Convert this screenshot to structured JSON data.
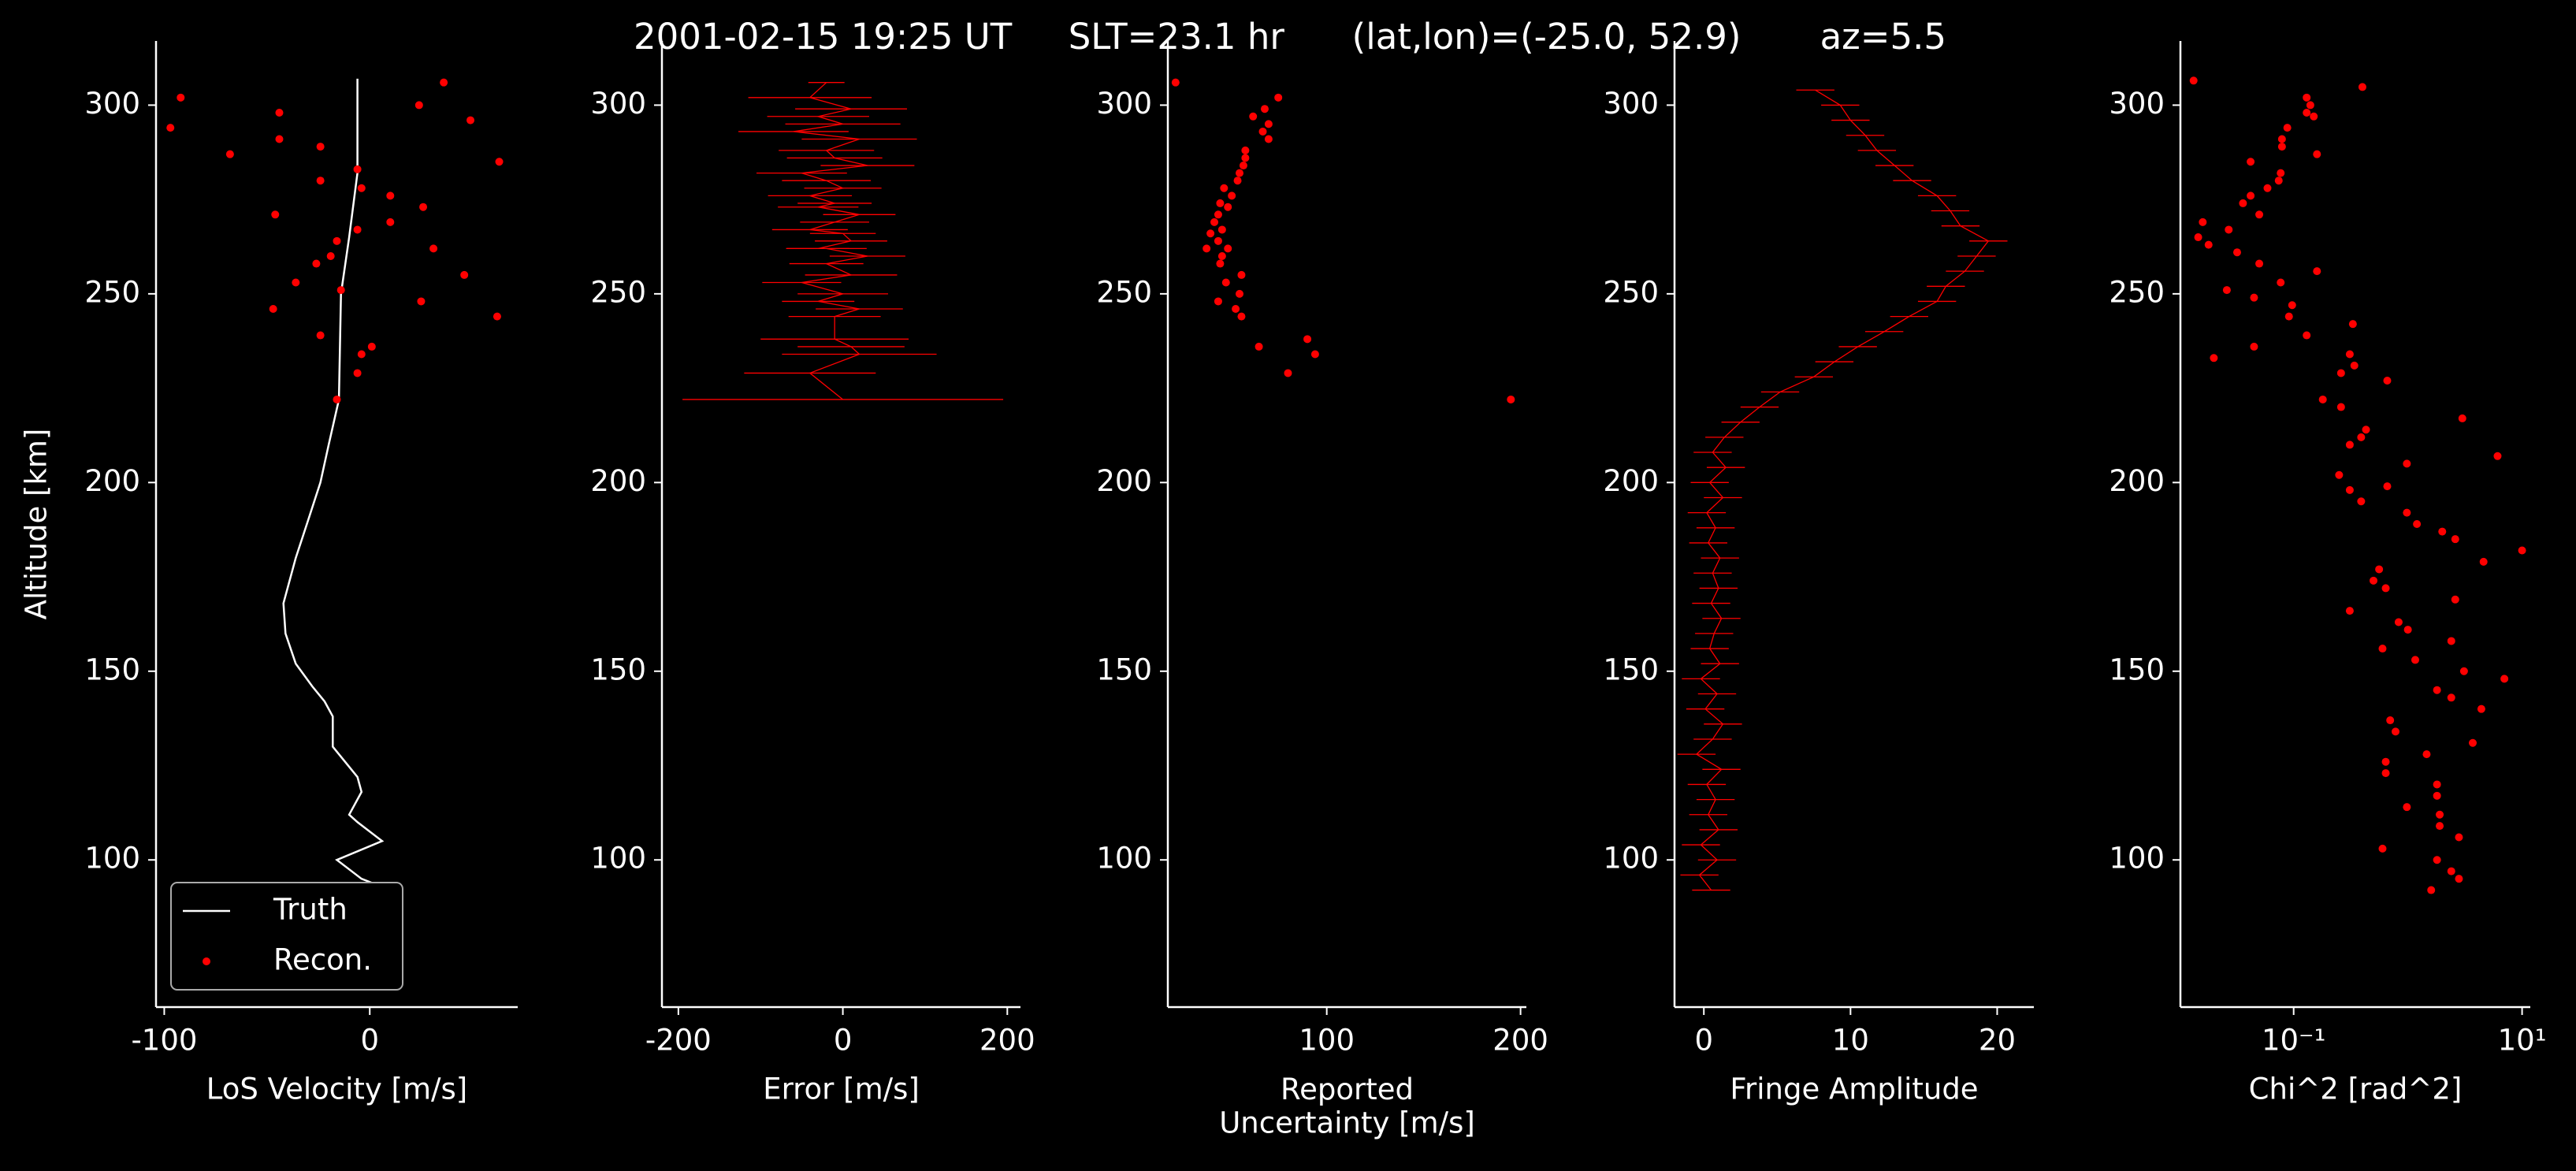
{
  "title": "2001-02-15 19:25 UT     SLT=23.1 hr      (lat,lon)=(-25.0, 52.9)       az=5.5",
  "chart_data": [
    {
      "type": "line",
      "xlabel": "LoS Velocity [m/s]",
      "ylabel": "Altitude [km]",
      "xlim": [
        -104,
        72
      ],
      "xticks": [
        -100,
        0
      ],
      "ylim": [
        61,
        317
      ],
      "yticks": [
        100,
        150,
        200,
        250,
        300
      ],
      "legend": "lower left",
      "series": [
        {
          "name": "Truth",
          "color": "#ffffff",
          "x": [
            -6,
            -6,
            -10,
            -14,
            -15,
            -20,
            -24,
            -30,
            -36,
            -42,
            -41,
            -36,
            -28,
            -22,
            -18,
            -18,
            -12,
            -6,
            -4,
            -10,
            -6,
            6,
            -16,
            -4,
            10
          ],
          "y": [
            307,
            282,
            265,
            250,
            222,
            210,
            200,
            190,
            180,
            168,
            160,
            152,
            146,
            142,
            138,
            130,
            126,
            122,
            118,
            112,
            110,
            105,
            100,
            95,
            92
          ]
        },
        {
          "name": "Recon.",
          "color": "#ff0000",
          "marker": "dot",
          "x": [
            -92,
            -97,
            -44,
            -68,
            -44,
            -24,
            -24,
            36,
            24,
            49,
            63,
            -6,
            -4,
            10,
            10,
            26,
            -46,
            -6,
            -16,
            -19,
            -26,
            31,
            46,
            -36,
            -14,
            -47,
            25,
            62,
            -24,
            1,
            -4,
            -6,
            -16
          ],
          "y": [
            302,
            294,
            298,
            287,
            291,
            289,
            280,
            306,
            300,
            296,
            285,
            283,
            278,
            276,
            269,
            273,
            271,
            267,
            264,
            260,
            258,
            262,
            255,
            253,
            251,
            246,
            248,
            244,
            239,
            236,
            234,
            229,
            222
          ]
        }
      ]
    },
    {
      "type": "errorbar",
      "xlabel": "Error [m/s]",
      "xlim": [
        -220,
        216
      ],
      "xticks": [
        -200,
        0,
        200
      ],
      "ylim": [
        61,
        317
      ],
      "yticks": [
        100,
        150,
        200,
        250,
        300
      ],
      "series": [
        {
          "color": "#ff0000",
          "x": [
            -20,
            -40,
            10,
            -30,
            0,
            -60,
            20,
            -20,
            -10,
            30,
            -50,
            -20,
            0,
            -40,
            -10,
            -30,
            20,
            -10,
            -40,
            0,
            10,
            -30,
            -20,
            30,
            -20,
            10,
            -50,
            0,
            -30,
            20,
            -10,
            -10,
            10,
            20,
            -40,
            0
          ],
          "errors": [
            22,
            75,
            68,
            62,
            70,
            67,
            70,
            58,
            58,
            57,
            55,
            54,
            47,
            51,
            45,
            49,
            44,
            42,
            46,
            40,
            44,
            38,
            49,
            46,
            45,
            56,
            48,
            55,
            44,
            53,
            56,
            90,
            65,
            94,
            80,
            195
          ],
          "y": [
            306,
            302,
            299,
            297,
            295,
            293,
            291,
            288,
            286,
            284,
            282,
            280,
            278,
            276,
            274,
            273,
            271,
            269,
            267,
            266,
            264,
            262,
            262,
            260,
            258,
            255,
            253,
            250,
            248,
            246,
            244,
            238,
            236,
            234,
            229,
            222
          ]
        }
      ]
    },
    {
      "type": "scatter",
      "xlabel": "Reported\nUncertainty [m/s]",
      "xlim": [
        18,
        203
      ],
      "xticks": [
        100,
        200
      ],
      "ylim": [
        61,
        317
      ],
      "yticks": [
        100,
        150,
        200,
        250,
        300
      ],
      "series": [
        {
          "color": "#ff0000",
          "marker": "dot",
          "x": [
            22,
            75,
            68,
            62,
            70,
            67,
            70,
            58,
            58,
            57,
            55,
            54,
            47,
            51,
            45,
            49,
            44,
            42,
            46,
            40,
            44,
            38,
            49,
            46,
            45,
            56,
            48,
            55,
            44,
            53,
            56,
            90,
            65,
            94,
            80,
            195
          ],
          "y": [
            306,
            302,
            299,
            297,
            295,
            293,
            291,
            288,
            286,
            284,
            282,
            280,
            278,
            276,
            274,
            273,
            271,
            269,
            267,
            266,
            264,
            262,
            262,
            260,
            258,
            255,
            253,
            250,
            248,
            246,
            244,
            238,
            236,
            234,
            229,
            222
          ]
        }
      ]
    },
    {
      "type": "errorbar",
      "xlabel": "Fringe Amplitude",
      "xlim": [
        -2,
        22.5
      ],
      "xticks": [
        0,
        10,
        20
      ],
      "ylim": [
        61,
        317
      ],
      "yticks": [
        100,
        150,
        200,
        250,
        300
      ],
      "series": [
        {
          "color": "#ff0000",
          "error": 1.3,
          "x": [
            0.5,
            -0.3,
            0.9,
            -0.2,
            1.0,
            0.3,
            0.8,
            0.2,
            1.2,
            -0.5,
            0.6,
            1.3,
            0.1,
            0.9,
            -0.2,
            1.1,
            0.4,
            0.7,
            1.2,
            0.5,
            1.0,
            0.6,
            1.1,
            0.3,
            0.8,
            0.2,
            1.3,
            0.4,
            1.5,
            0.6,
            1.4,
            2.5,
            3.8,
            5.2,
            7.5,
            8.9,
            10.5,
            12.3,
            14.0,
            15.9,
            16.5,
            17.8,
            18.6,
            19.4,
            17.5,
            16.8,
            15.9,
            14.2,
            13.0,
            11.8,
            11.0,
            10.0,
            9.3,
            7.6
          ],
          "y": [
            92,
            96,
            100,
            104,
            108,
            112,
            116,
            120,
            124,
            128,
            132,
            136,
            140,
            144,
            148,
            152,
            156,
            160,
            164,
            168,
            172,
            176,
            180,
            184,
            188,
            192,
            196,
            200,
            204,
            208,
            212,
            216,
            220,
            224,
            228,
            232,
            236,
            240,
            244,
            248,
            252,
            256,
            260,
            264,
            268,
            272,
            276,
            280,
            284,
            288,
            292,
            296,
            300,
            304
          ]
        }
      ]
    },
    {
      "type": "scatter",
      "xlabel": "Chi^2 [rad^2]",
      "xscale": "log",
      "xlim": [
        0.0102,
        11.8
      ],
      "xticks": [
        {
          "value": 0.1,
          "label": "10⁻¹"
        },
        {
          "value": 10,
          "label": "10¹"
        }
      ],
      "ylim": [
        61,
        317
      ],
      "yticks": [
        100,
        150,
        200,
        250,
        300
      ],
      "series": [
        {
          "color": "#ff0000",
          "marker": "dot",
          "x": [
            0.0133,
            0.4,
            0.13,
            0.14,
            0.13,
            0.15,
            0.088,
            0.079,
            0.079,
            0.16,
            0.042,
            0.077,
            0.074,
            0.059,
            0.042,
            0.036,
            0.05,
            0.016,
            0.027,
            0.0146,
            0.018,
            0.032,
            0.05,
            0.16,
            0.077,
            0.026,
            0.045,
            0.097,
            0.091,
            0.33,
            0.13,
            0.045,
            0.31,
            0.02,
            0.34,
            0.26,
            0.18,
            0.26,
            0.66,
            3.0,
            0.43,
            0.39,
            0.31,
            6.1,
            0.98,
            0.25,
            0.66,
            0.31,
            0.39,
            0.98,
            1.2,
            2.0,
            2.6,
            10,
            4.6,
            0.56,
            0.5,
            0.64,
            2.6,
            0.31,
            0.83,
            1.0,
            2.4,
            0.6,
            1.16,
            3.1,
            7,
            1.8,
            2.4,
            4.4,
            0.7,
            0.78,
            3.7,
            1.46,
            0.64,
            0.64,
            1.8,
            1.8,
            0.98,
            1.9,
            1.9,
            2.8,
            0.6,
            1.8,
            2.4,
            2.8,
            1.6
          ],
          "y": [
            306.5,
            304.8,
            302,
            300,
            298,
            297,
            294,
            291,
            289,
            287,
            285,
            282,
            280,
            278,
            276,
            274,
            271,
            269,
            267,
            265,
            263,
            261,
            258,
            256,
            253,
            251,
            249,
            247,
            244,
            242,
            239,
            236,
            234,
            233,
            231,
            229,
            222,
            220,
            227,
            217,
            214,
            212,
            210,
            207,
            205,
            202,
            199,
            198,
            195,
            192,
            189,
            187,
            185,
            182,
            179,
            177,
            174,
            172,
            169,
            166,
            163,
            161,
            158,
            156,
            153,
            150,
            148,
            145,
            143,
            140,
            137,
            134,
            131,
            128,
            126,
            123,
            120,
            117,
            114,
            112,
            109,
            106,
            103,
            100,
            97,
            95,
            92
          ]
        }
      ]
    }
  ]
}
